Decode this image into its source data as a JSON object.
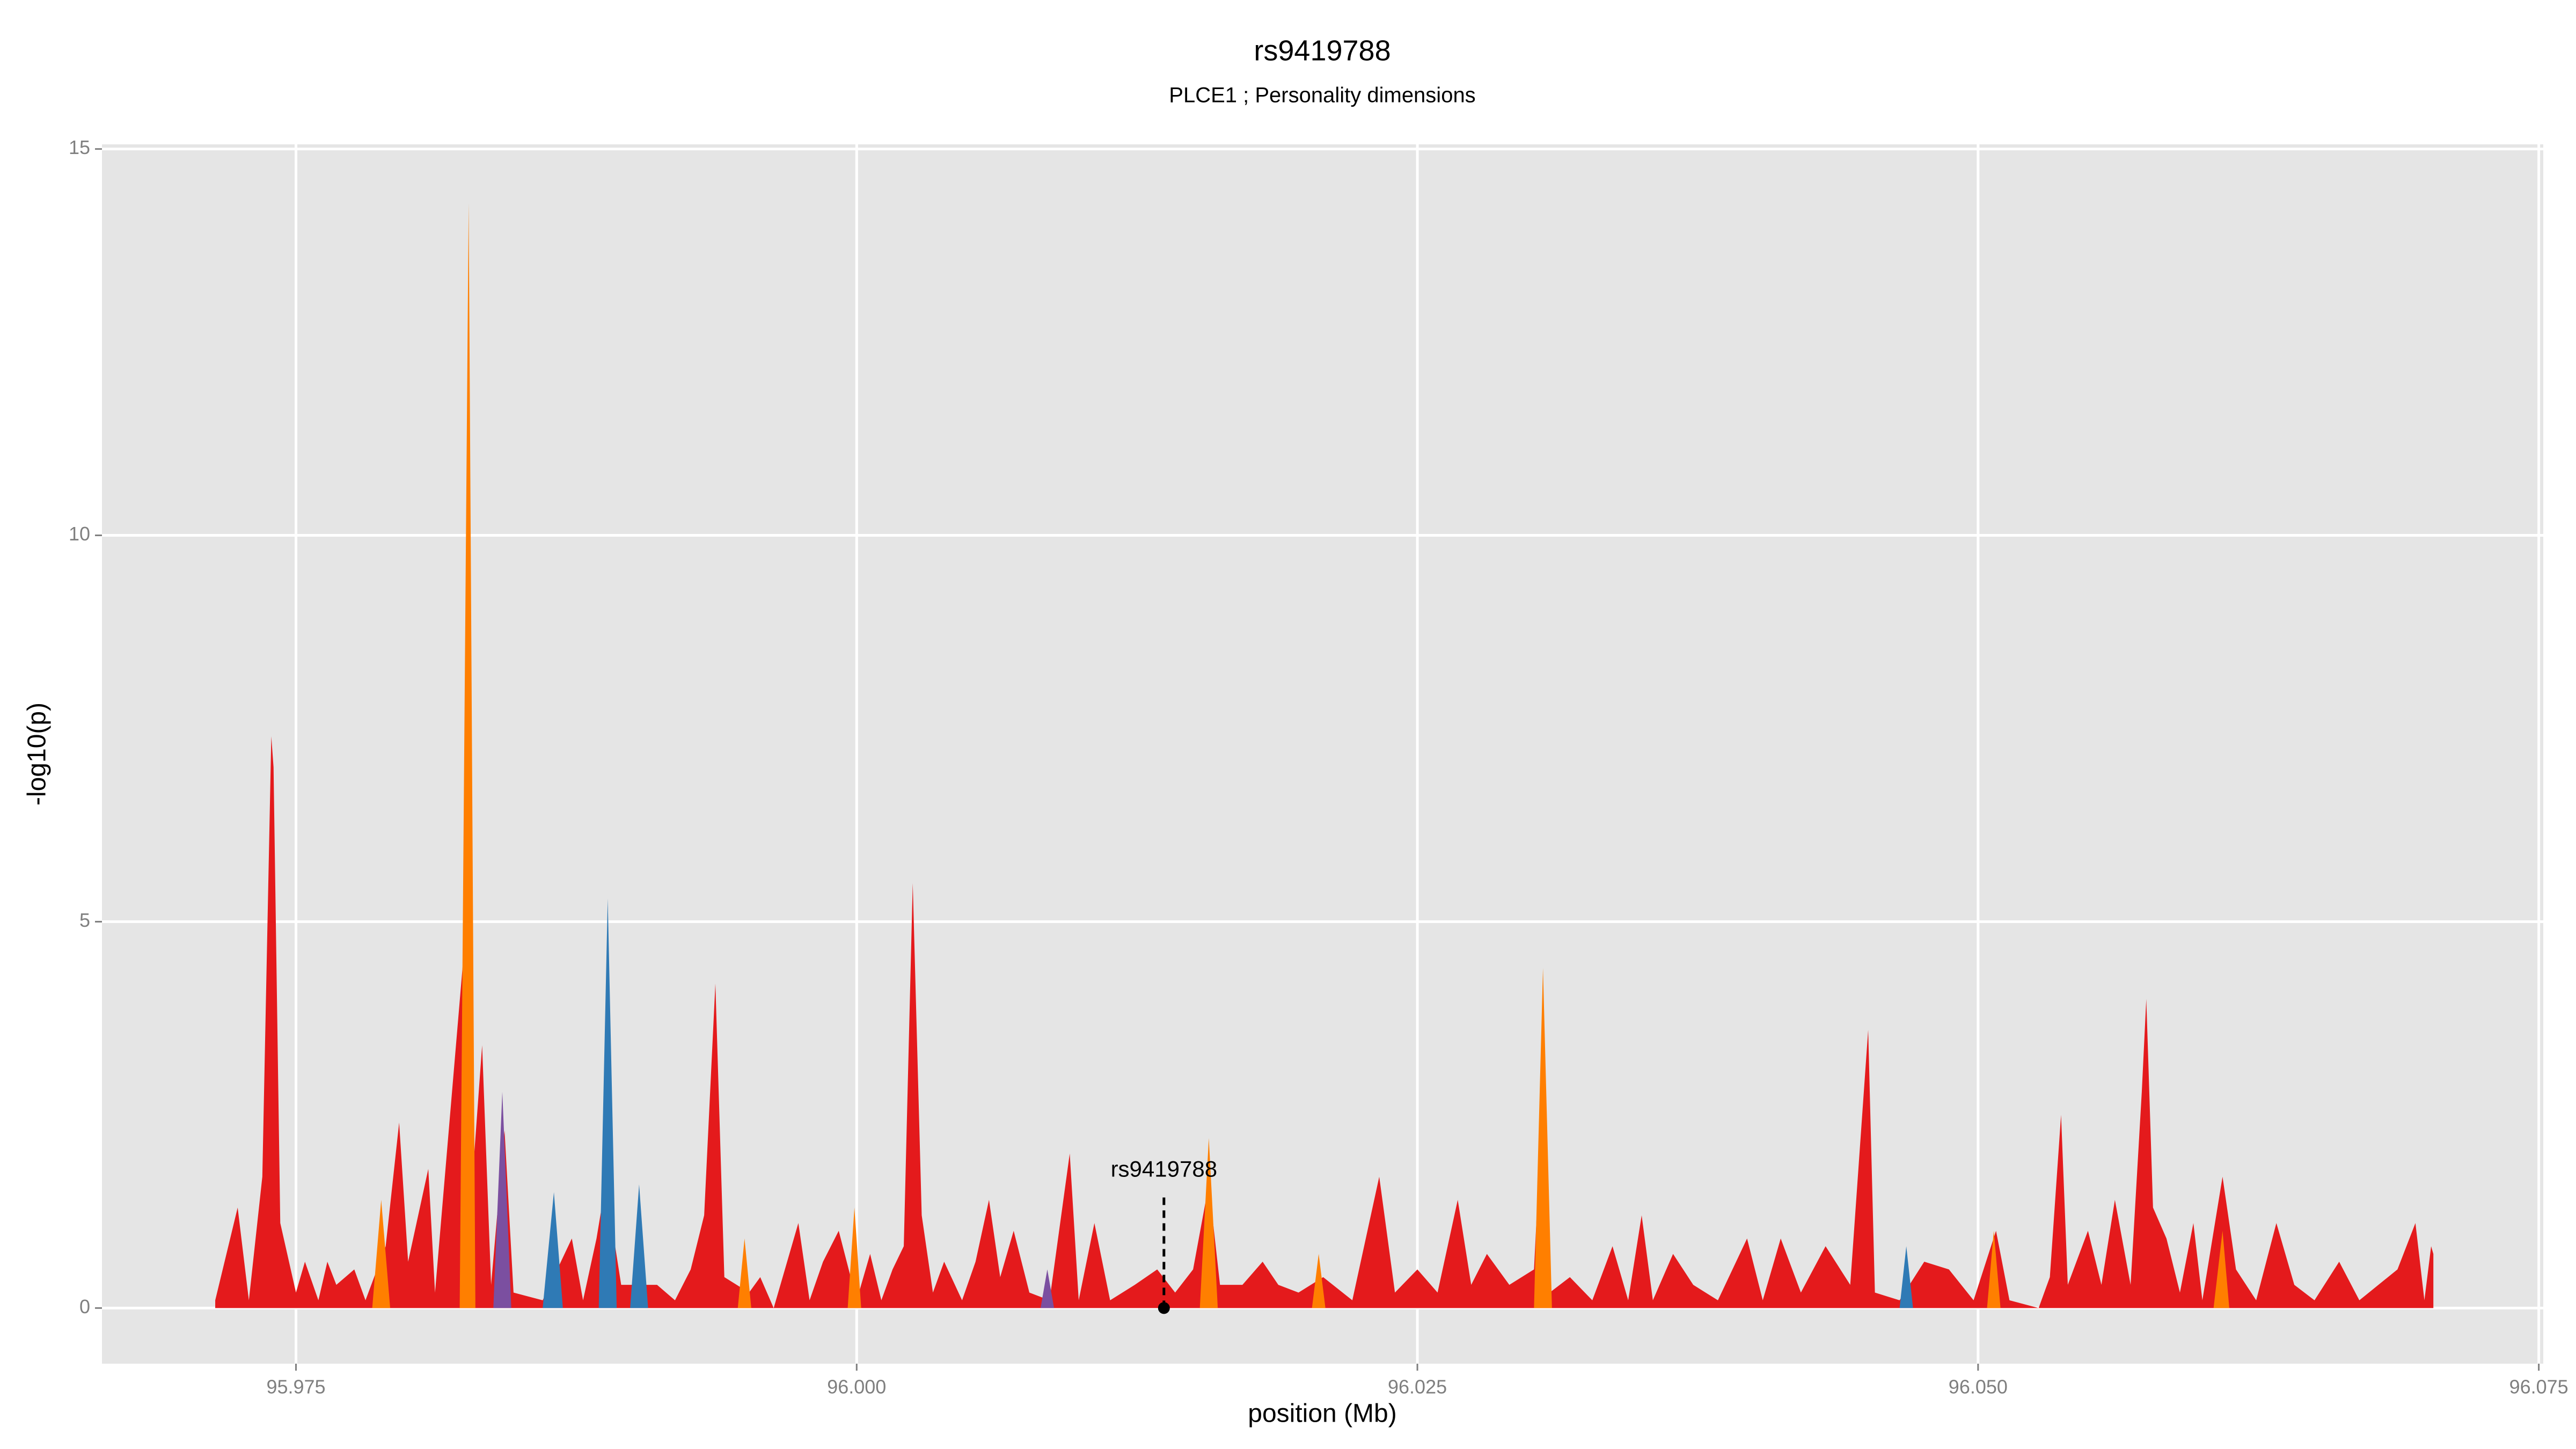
{
  "chart_data": {
    "type": "area",
    "title": "rs9419788",
    "subtitle": "PLCE1 ; Personality dimensions",
    "xlabel": "position (Mb)",
    "ylabel": "-log10(p)",
    "xlim": [
      95.96635,
      96.0752
    ],
    "ylim": [
      -0.72,
      15.06
    ],
    "xticks": [
      {
        "value": 95.975,
        "label": "95.975"
      },
      {
        "value": 96,
        "label": "96.000"
      },
      {
        "value": 96.025,
        "label": "96.025"
      },
      {
        "value": 96.05,
        "label": "96.050"
      },
      {
        "value": 96.075,
        "label": "96.075"
      }
    ],
    "yticks": [
      0,
      5,
      10,
      15
    ],
    "grid": true,
    "series": [
      {
        "color": "#e41a1c",
        "x": [
          95.9714,
          95.9724,
          95.9729,
          95.9735,
          95.9739,
          95.974,
          95.9743,
          95.975,
          95.9754,
          95.976,
          95.9764,
          95.9768,
          95.9776,
          95.9781,
          95.979,
          95.9796,
          95.98,
          95.9809,
          95.9812,
          95.9826,
          95.9829,
          95.9833,
          95.9837,
          95.9843,
          95.9847,
          95.986,
          95.9873,
          95.9878,
          95.9884,
          95.9888,
          95.9895,
          95.9911,
          95.9919,
          95.9926,
          95.9932,
          95.9937,
          95.9941,
          95.9952,
          95.9957,
          95.9963,
          95.9974,
          95.9979,
          95.9985,
          95.9992,
          96.0,
          96.0006,
          96.0011,
          96.0016,
          96.0021,
          96.0025,
          96.0029,
          96.0034,
          96.0039,
          96.0047,
          96.0053,
          96.0059,
          96.0064,
          96.007,
          96.0077,
          96.0086,
          96.0095,
          96.0099,
          96.0106,
          96.0113,
          96.0124,
          96.0134,
          96.0142,
          96.015,
          96.0157,
          96.0162,
          96.0172,
          96.0181,
          96.0188,
          96.0197,
          96.0208,
          96.0221,
          96.0233,
          96.024,
          96.025,
          96.0259,
          96.0268,
          96.0274,
          96.0281,
          96.0291,
          96.0302,
          96.0306,
          96.0309,
          96.0318,
          96.0328,
          96.0337,
          96.0344,
          96.035,
          96.0355,
          96.0364,
          96.0373,
          96.0384,
          96.0397,
          96.0404,
          96.0412,
          96.0421,
          96.0432,
          96.0443,
          96.0451,
          96.0454,
          96.0465,
          96.0476,
          96.0487,
          96.0498,
          96.0508,
          96.0514,
          96.0527,
          96.0532,
          96.0537,
          96.054,
          96.0549,
          96.0555,
          96.0561,
          96.0568,
          96.0573,
          96.0575,
          96.0578,
          96.0584,
          96.059,
          96.0596,
          96.06,
          96.0609,
          96.0615,
          96.0624,
          96.0633,
          96.0641,
          96.065,
          96.0661,
          96.067,
          96.0687,
          96.0695,
          96.0699,
          96.0702,
          96.0703
        ],
        "values": [
          0.1,
          1.3,
          0.1,
          1.7,
          7.4,
          7.0,
          1.1,
          0.2,
          0.6,
          0.1,
          0.6,
          0.3,
          0.5,
          0.1,
          0.8,
          2.4,
          0.6,
          1.8,
          0.2,
          5.0,
          1.8,
          3.4,
          0.3,
          2.3,
          0.2,
          0.1,
          0.9,
          0.1,
          0.9,
          1.6,
          0.3,
          0.3,
          0.1,
          0.5,
          1.2,
          4.2,
          0.4,
          0.2,
          0.4,
          0.0,
          1.1,
          0.1,
          0.6,
          1.0,
          0.1,
          0.7,
          0.1,
          0.5,
          0.8,
          5.5,
          1.2,
          0.2,
          0.6,
          0.1,
          0.6,
          1.4,
          0.4,
          1.0,
          0.2,
          0.1,
          2.0,
          0.1,
          1.1,
          0.1,
          0.3,
          0.5,
          0.2,
          0.5,
          1.6,
          0.3,
          0.3,
          0.6,
          0.3,
          0.2,
          0.4,
          0.1,
          1.7,
          0.2,
          0.5,
          0.2,
          1.4,
          0.3,
          0.7,
          0.3,
          0.5,
          2.8,
          0.2,
          0.4,
          0.1,
          0.8,
          0.1,
          1.2,
          0.1,
          0.7,
          0.3,
          0.1,
          0.9,
          0.1,
          0.9,
          0.2,
          0.8,
          0.3,
          3.6,
          0.2,
          0.1,
          0.6,
          0.5,
          0.1,
          1.0,
          0.1,
          0.0,
          0.4,
          2.5,
          0.3,
          1.0,
          0.3,
          1.4,
          0.3,
          2.8,
          4.0,
          1.3,
          0.9,
          0.2,
          1.1,
          0.1,
          1.7,
          0.5,
          0.1,
          1.1,
          0.3,
          0.1,
          0.6,
          0.1,
          0.5,
          1.1,
          0.1,
          0.8,
          0.7
        ]
      },
      {
        "color": "#ff7f00",
        "x": [
          95.9784,
          95.9788,
          95.9792,
          95.9823,
          95.9827,
          95.983,
          95.9947,
          95.995,
          95.9953,
          95.9996,
          95.9999,
          96.0002,
          96.0153,
          96.0157,
          96.0161,
          96.0203,
          96.0206,
          96.0209,
          96.0302,
          96.0306,
          96.031,
          96.0504,
          96.0507,
          96.051,
          96.0605,
          96.0609,
          96.0612
        ],
        "values": [
          0,
          1.4,
          0,
          0,
          14.3,
          0,
          0,
          0.9,
          0,
          0,
          1.3,
          0,
          0,
          2.2,
          0,
          0,
          0.7,
          0,
          0,
          4.4,
          0,
          0,
          1.0,
          0,
          0,
          1.0,
          0
        ]
      },
      {
        "color": "#2f7ab5",
        "x": [
          95.986,
          95.9865,
          95.9869,
          95.9885,
          95.9889,
          95.9893,
          95.9899,
          95.9903,
          95.9907,
          96.0465,
          96.0468,
          96.0471
        ],
        "values": [
          0,
          1.5,
          0,
          0,
          5.3,
          0,
          0,
          1.6,
          0,
          0,
          0.8,
          0
        ]
      },
      {
        "color": "#7b4fa0",
        "x": [
          95.9838,
          95.9842,
          95.9846,
          96.0082,
          96.0085,
          96.0088
        ],
        "values": [
          0,
          2.8,
          0,
          0,
          0.5,
          0
        ]
      }
    ],
    "annotation": {
      "text": "rs9419788",
      "x": 96.0137,
      "y": 0
    }
  }
}
